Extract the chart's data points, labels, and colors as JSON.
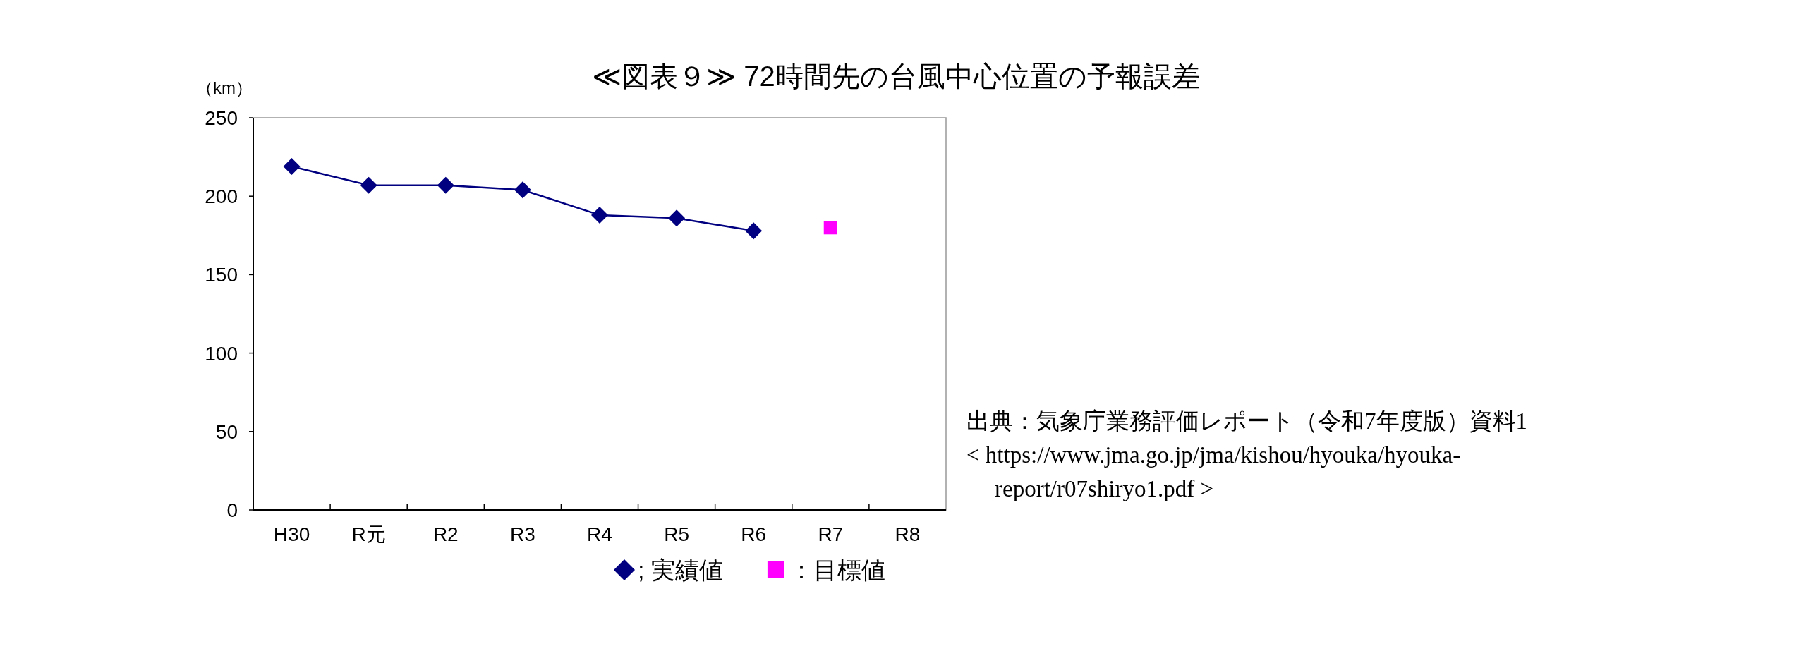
{
  "chart_data": {
    "type": "line",
    "title": "≪図表９≫ 72時間先の台風中心位置の予報誤差",
    "ylabel": "（km）",
    "categories": [
      "H30",
      "R元",
      "R2",
      "R3",
      "R4",
      "R5",
      "R6",
      "R7",
      "R8"
    ],
    "series": [
      {
        "name": "; 実績値",
        "color": "#000080",
        "marker": "diamond",
        "values": [
          219,
          207,
          207,
          204,
          188,
          186,
          178,
          null,
          null
        ]
      },
      {
        "name": "：目標値",
        "type": "scatter",
        "color": "#ff00ff",
        "marker": "square",
        "values": [
          null,
          null,
          null,
          null,
          null,
          null,
          null,
          180,
          null
        ]
      }
    ],
    "ylim": [
      0,
      250
    ],
    "yticks": [
      0,
      50,
      100,
      150,
      200,
      250
    ],
    "grid": false,
    "legend": "bottom",
    "annotations": [
      "出典：気象庁業務評価レポート（令和7年度版）資料1",
      "< https://www.jma.go.jp/jma/kishou/hyouka/hyouka-",
      "report/r07shiryo1.pdf >"
    ]
  }
}
